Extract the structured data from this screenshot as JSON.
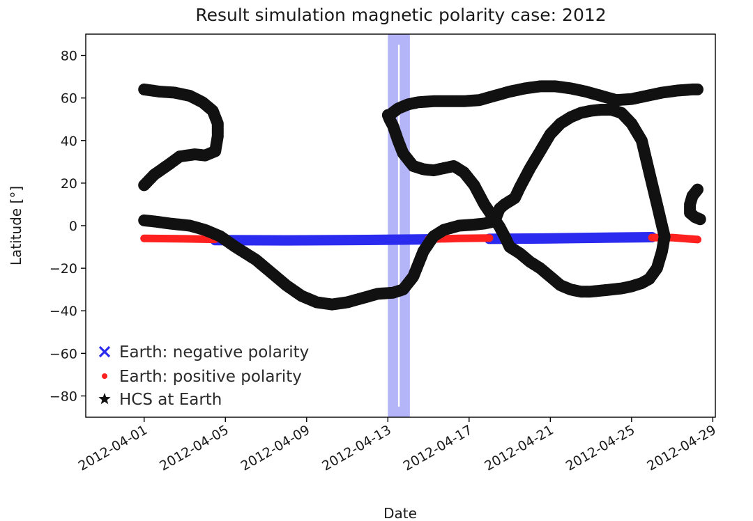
{
  "chart_data": {
    "type": "scatter",
    "title": "Result simulation magnetic polarity case: 2012",
    "xlabel": "Date",
    "ylabel": "Latitude [°]",
    "xlim": [
      "2012-03-29T03:00",
      "2012-04-29T03:00"
    ],
    "ylim": [
      -90,
      90
    ],
    "x_ticks": [
      "2012-04-01",
      "2012-04-05",
      "2012-04-09",
      "2012-04-13",
      "2012-04-17",
      "2012-04-21",
      "2012-04-25",
      "2012-04-29"
    ],
    "y_ticks": [
      80,
      60,
      40,
      20,
      0,
      -20,
      -40,
      -60,
      -80
    ],
    "y_tick_labels": [
      "80",
      "60",
      "40",
      "20",
      "0",
      "−20",
      "−40",
      "−60",
      "−80"
    ],
    "grid": false,
    "legend_position": "lower-left",
    "highlight_band": {
      "x_start": "2012-04-13T00:00",
      "x_end": "2012-04-14T02:00",
      "inner_x_start": "2012-04-13T12:00",
      "inner_x_end": "2012-04-13T14:00",
      "inner_y_range": [
        -85,
        85
      ],
      "color": "#9b9bf5"
    },
    "series": [
      {
        "name": "Earth: negative polarity",
        "marker": "x",
        "color": "#2b2bf0",
        "segments": [
          {
            "x": [
              "2012-04-04T12:00",
              "2012-04-08T00:00",
              "2012-04-12T00:00",
              "2012-04-15T00:00"
            ],
            "y": [
              -6.8,
              -6.9,
              -6.7,
              -6.4
            ]
          },
          {
            "x": [
              "2012-04-18T00:00",
              "2012-04-21T00:00",
              "2012-04-24T00:00",
              "2012-04-26T00:00"
            ],
            "y": [
              -6.2,
              -6.0,
              -5.6,
              -5.4
            ]
          }
        ]
      },
      {
        "name": "Earth: positive polarity",
        "marker": "o",
        "color": "#ff2020",
        "segments": [
          {
            "x": [
              "2012-04-01T00:00",
              "2012-04-03T00:00",
              "2012-04-04T12:00"
            ],
            "y": [
              -6.0,
              -6.2,
              -6.4
            ]
          },
          {
            "x": [
              "2012-04-15T00:00",
              "2012-04-16T12:00",
              "2012-04-18T00:00"
            ],
            "y": [
              -6.3,
              -6.0,
              -5.8
            ]
          },
          {
            "x": [
              "2012-04-26T00:00",
              "2012-04-27T00:00",
              "2012-04-28T06:00"
            ],
            "y": [
              -5.6,
              -5.6,
              -6.5
            ]
          }
        ]
      },
      {
        "name": "HCS at Earth",
        "marker": "*",
        "color": "#111111",
        "segments": [
          {
            "x": [
              "2012-04-01T00:00",
              "2012-04-01T12:00",
              "2012-04-02T06:00",
              "2012-04-02T18:00",
              "2012-04-03T12:00",
              "2012-04-04T00:00",
              "2012-04-04T12:00",
              "2012-04-04T15:00",
              "2012-04-04T15:00",
              "2012-04-04T09:00",
              "2012-04-03T21:00",
              "2012-04-03T06:00",
              "2012-04-02T12:00",
              "2012-04-01T18:00",
              "2012-04-01T00:00"
            ],
            "y": [
              19,
              24,
              29,
              32.5,
              33.5,
              33,
              35,
              42,
              48,
              54,
              58,
              61,
              62.5,
              63,
              64
            ]
          },
          {
            "x": [
              "2012-04-01T00:00",
              "2012-04-01T12:00",
              "2012-04-02T06:00",
              "2012-04-03T06:00",
              "2012-04-04T00:00",
              "2012-04-04T18:00",
              "2012-04-05T12:00",
              "2012-04-06T12:00",
              "2012-04-07T06:00",
              "2012-04-08T00:00",
              "2012-04-08T18:00",
              "2012-04-09T12:00",
              "2012-04-10T06:00",
              "2012-04-11T00:00",
              "2012-04-11T18:00",
              "2012-04-12T12:00",
              "2012-04-13T06:00",
              "2012-04-13T18:00",
              "2012-04-14T06:00",
              "2012-04-14T12:00",
              "2012-04-14T18:00",
              "2012-04-15T06:00",
              "2012-04-15T18:00",
              "2012-04-16T12:00",
              "2012-04-17T06:00",
              "2012-04-17T18:00",
              "2012-04-18T06:00",
              "2012-04-18T12:00",
              "2012-04-18T18:00",
              "2012-04-19T06:00",
              "2012-04-19T12:00",
              "2012-04-20T00:00",
              "2012-04-20T12:00",
              "2012-04-21T00:00",
              "2012-04-21T12:00",
              "2012-04-22T00:00",
              "2012-04-22T12:00",
              "2012-04-23T00:00",
              "2012-04-23T12:00",
              "2012-04-24T00:00",
              "2012-04-24T12:00",
              "2012-04-25T00:00",
              "2012-04-25T12:00",
              "2012-04-25T21:00",
              "2012-04-26T06:00",
              "2012-04-26T12:00",
              "2012-04-26T15:00",
              "2012-04-26T12:00",
              "2012-04-26T06:00",
              "2012-04-25T21:00",
              "2012-04-25T12:00",
              "2012-04-25T00:00",
              "2012-04-24T12:00",
              "2012-04-24T00:00",
              "2012-04-23T12:00",
              "2012-04-23T00:00",
              "2012-04-22T12:00",
              "2012-04-22T00:00",
              "2012-04-21T12:00",
              "2012-04-21T00:00",
              "2012-04-20T12:00",
              "2012-04-20T00:00",
              "2012-04-19T12:00",
              "2012-04-19T00:00",
              "2012-04-18T18:00",
              "2012-04-18T12:00",
              "2012-04-18T06:00",
              "2012-04-17T18:00",
              "2012-04-17T06:00",
              "2012-04-16T18:00",
              "2012-04-16T06:00",
              "2012-04-15T18:00",
              "2012-04-15T06:00",
              "2012-04-14T18:00",
              "2012-04-14T06:00",
              "2012-04-13T18:00",
              "2012-04-13T12:00",
              "2012-04-13T06:00",
              "2012-04-13T02:00",
              "2012-04-13T00:00"
            ],
            "y": [
              2.5,
              2,
              1,
              0,
              -2,
              -5,
              -10,
              -16,
              -22,
              -28,
              -33,
              -36,
              -37,
              -36,
              -34,
              -32,
              -31.5,
              -30,
              -24,
              -18,
              -12,
              -5,
              -2,
              0,
              0.5,
              1,
              2,
              8,
              10,
              13,
              18,
              27,
              35,
              43,
              48,
              51,
              53,
              54,
              54.5,
              54.5,
              53,
              48,
              40,
              25,
              10,
              0,
              -5,
              -12,
              -20,
              -25,
              -27,
              -28.5,
              -29.5,
              -30,
              -30.5,
              -31,
              -31,
              -30,
              -28,
              -24,
              -20,
              -17,
              -13,
              -10,
              -5,
              -0.5,
              3,
              10,
              19,
              25,
              28,
              27,
              26,
              26.5,
              28,
              34,
              40,
              47,
              50,
              52
            ]
          },
          {
            "x": [
              "2012-04-13T02:00",
              "2012-04-13T12:00",
              "2012-04-14T00:00",
              "2012-04-14T12:00",
              "2012-04-15T06:00",
              "2012-04-16T00:00",
              "2012-04-16T18:00",
              "2012-04-17T12:00",
              "2012-04-18T06:00",
              "2012-04-19T00:00",
              "2012-04-19T18:00",
              "2012-04-20T12:00",
              "2012-04-21T06:00",
              "2012-04-22T00:00",
              "2012-04-22T18:00",
              "2012-04-23T12:00",
              "2012-04-24T06:00",
              "2012-04-25T00:00",
              "2012-04-25T18:00",
              "2012-04-26T12:00",
              "2012-04-27T06:00",
              "2012-04-28T00:00",
              "2012-04-28T06:00"
            ],
            "y": [
              52,
              55,
              57,
              58,
              58.5,
              58.5,
              58.5,
              59,
              61,
              63,
              64.5,
              65.5,
              65.5,
              64.5,
              63,
              61,
              59,
              59.5,
              61,
              62.5,
              63.5,
              64,
              64
            ]
          },
          {
            "x": [
              "2012-04-28T06:00",
              "2012-04-28T00:00",
              "2012-04-27T21:00",
              "2012-04-27T21:00",
              "2012-04-28T03:00",
              "2012-04-28T09:00"
            ],
            "y": [
              17,
              14,
              10,
              6,
              4,
              3
            ]
          }
        ]
      }
    ]
  }
}
